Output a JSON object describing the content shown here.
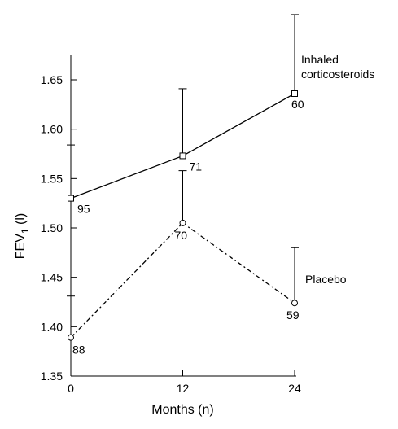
{
  "chart_data": {
    "type": "line",
    "title": "",
    "xlabel": "Months (n)",
    "ylabel_main": "FEV",
    "ylabel_sub": "1",
    "ylabel_unit": "(l)",
    "x_ticks": [
      0,
      12,
      24
    ],
    "y_ticks": [
      "1.35",
      "1.40",
      "1.45",
      "1.50",
      "1.55",
      "1.60",
      "1.65"
    ],
    "xlim": [
      0,
      24
    ],
    "ylim": [
      1.35,
      1.68
    ],
    "grid": false,
    "series": [
      {
        "name": "Inhaled corticosteroids",
        "label_lines": [
          "Inhaled",
          "corticosteroids"
        ],
        "marker": "square",
        "line_style": "solid",
        "x": [
          0,
          12,
          24
        ],
        "y": [
          1.53,
          1.573,
          1.636
        ],
        "error_upper": [
          1.584,
          1.641,
          1.716
        ],
        "n": [
          "95",
          "71",
          "60"
        ]
      },
      {
        "name": "Placebo",
        "label_lines": [
          "Placebo"
        ],
        "marker": "circle",
        "line_style": "dash-dot",
        "x": [
          0,
          12,
          24
        ],
        "y": [
          1.389,
          1.505,
          1.424
        ],
        "error_upper": [
          1.431,
          1.558,
          1.48
        ],
        "n": [
          "88",
          "70",
          "59"
        ]
      }
    ]
  },
  "colors": {
    "line": "#000000",
    "marker_fill": "#ffffff",
    "background": "#ffffff"
  }
}
